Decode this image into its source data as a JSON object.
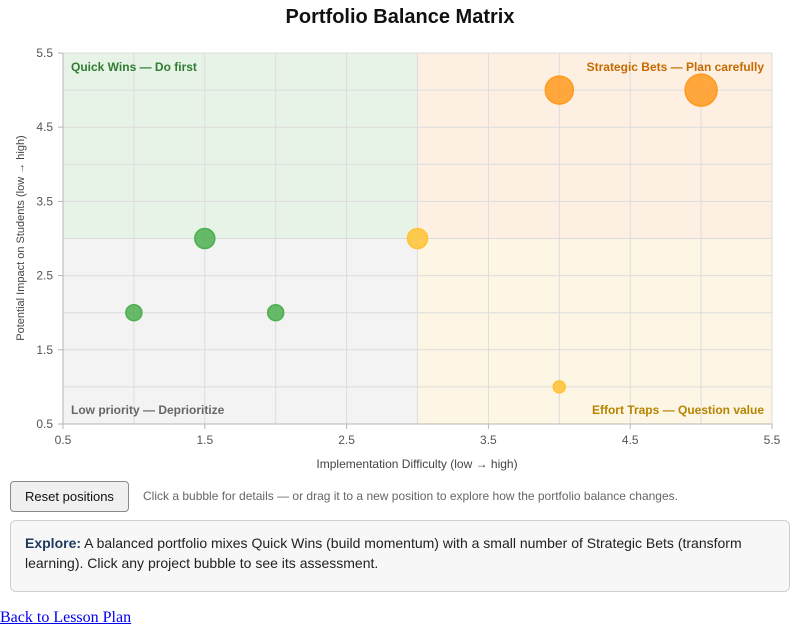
{
  "chart_data": {
    "type": "scatter",
    "title": "Portfolio Balance Matrix",
    "xlabel": "Implementation Difficulty (low → high)",
    "ylabel": "Potential Impact on Students (low → high)",
    "xlim": [
      0.5,
      5.5
    ],
    "ylim": [
      0.5,
      5.5
    ],
    "x_ticks": [
      "0.5",
      "1.5",
      "2.5",
      "3.5",
      "4.5",
      "5.5"
    ],
    "y_ticks": [
      "0.5",
      "1.5",
      "2.5",
      "3.5",
      "4.5",
      "5.5"
    ],
    "grid": true,
    "divider": {
      "x": 3,
      "y": 3
    },
    "quadrants": [
      {
        "label": "Quick Wins — Do first",
        "color": "#2e7d32",
        "fill": "#e8f3e8",
        "x_range": [
          0.5,
          3
        ],
        "y_range": [
          3,
          5.5
        ],
        "label_pos": "top-left"
      },
      {
        "label": "Strategic Bets — Plan carefully",
        "color": "#c56b00",
        "fill": "#fdf0e2",
        "x_range": [
          3,
          5.5
        ],
        "y_range": [
          3,
          5.5
        ],
        "label_pos": "top-right"
      },
      {
        "label": "Low priority — Deprioritize",
        "color": "#666666",
        "fill": "#f3f3f3",
        "x_range": [
          0.5,
          3
        ],
        "y_range": [
          0.5,
          3
        ],
        "label_pos": "bottom-left"
      },
      {
        "label": "Effort Traps — Question value",
        "color": "#b58400",
        "fill": "#fdf6e4",
        "x_range": [
          3,
          5.5
        ],
        "y_range": [
          0.5,
          3
        ],
        "label_pos": "bottom-right"
      }
    ],
    "points": [
      {
        "x": 1.5,
        "y": 3,
        "size": "medium",
        "color": "#4caf50"
      },
      {
        "x": 1,
        "y": 2,
        "size": "small",
        "color": "#4caf50"
      },
      {
        "x": 2,
        "y": 2,
        "size": "small",
        "color": "#4caf50"
      },
      {
        "x": 3,
        "y": 3,
        "size": "medium",
        "color": "#ffc233"
      },
      {
        "x": 4,
        "y": 5,
        "size": "large",
        "color": "#ff9a1f"
      },
      {
        "x": 5,
        "y": 5,
        "size": "xlarge",
        "color": "#ff9a1f"
      },
      {
        "x": 4,
        "y": 1,
        "size": "tiny",
        "color": "#ffc233"
      }
    ]
  },
  "controls": {
    "reset_label": "Reset positions",
    "hint": "Click a bubble for details — or drag it to a new position to explore how the portfolio balance changes."
  },
  "explore": {
    "heading": "Explore:",
    "text": " A balanced portfolio mixes Quick Wins (build momentum) with a small number of Strategic Bets (transform learning). Click any project bubble to see its assessment."
  },
  "back_link": "Back to Lesson Plan"
}
